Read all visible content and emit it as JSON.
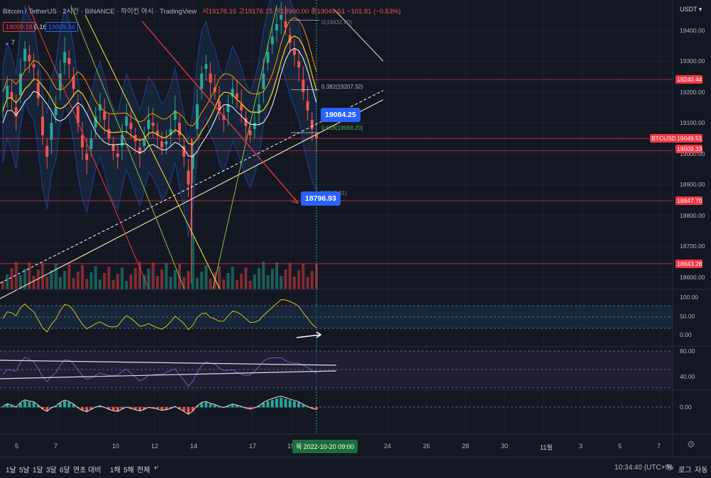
{
  "header": {
    "symbol": "Bitcoin / TetherUS · 2시간 · BINANCE · 하이킨 아시 · TradingView",
    "ohlc": "시19176.15 고19176.15 저18900.00 종19049.51 −101.81 (−0.53%)",
    "ind_values": [
      "19009.18",
      "0.16",
      "19009.34"
    ],
    "collapse": "7"
  },
  "price_axis": {
    "currency": "USDT",
    "ticks": [
      "19400.00",
      "19300.00",
      "19200.00",
      "19100.00",
      "19000.00",
      "18900.00",
      "18800.00",
      "18700.00",
      "18600.00"
    ],
    "rsi_ticks": [
      "100.00",
      "50.00",
      "0.00"
    ],
    "osc_ticks": [
      "80.00",
      "40.00"
    ],
    "macd_ticks": [
      "0.00"
    ]
  },
  "price_tags": [
    {
      "label": "19240.44",
      "color": "#f23645"
    },
    {
      "label": "BTCUSDT",
      "color": "#f23645"
    },
    {
      "label": "19049.51",
      "color": "#f23645"
    },
    {
      "label": "19009.33",
      "color": "#f23645"
    },
    {
      "label": "18847.70",
      "color": "#f23645"
    },
    {
      "label": "18643.28",
      "color": "#f23645"
    }
  ],
  "fib": {
    "top": "0(19432.80)",
    "mid": "0.382(19207.32)",
    "low": "0.618(19068.20)",
    "bottom": "(18848.01)"
  },
  "callouts": {
    "upper": "19084.25",
    "lower": "18796.93"
  },
  "time_axis": {
    "labels": [
      "5",
      "7",
      "10",
      "12",
      "14",
      "17",
      "19",
      "24",
      "26",
      "28",
      "30",
      "11월",
      "3",
      "5",
      "7"
    ],
    "current": "목 2022-10-20   09:00"
  },
  "bottom": {
    "timeframes": [
      "1날",
      "5날",
      "1달",
      "3달",
      "6달",
      "연초 대비",
      "1해",
      "5해",
      "전체"
    ],
    "clock": "10:34:40 (UTC+9)",
    "percent": "%",
    "log": "로그",
    "auto": "자동"
  },
  "chart_data": {
    "type": "candlestick",
    "title": "Bitcoin / TetherUS · 2시간 · BINANCE",
    "x_range": [
      "2022-10-04",
      "2022-11-08"
    ],
    "ylim": [
      18560,
      19480
    ],
    "last_close": 19049.51,
    "horizontal_levels": [
      19240.44,
      19049.51,
      19009.33,
      18847.7,
      18643.28
    ],
    "fib_levels": [
      {
        "ratio": 0,
        "price": 19432.8
      },
      {
        "ratio": 0.382,
        "price": 19207.32
      },
      {
        "ratio": 0.618,
        "price": 19068.2
      }
    ],
    "targets": [
      19084.25,
      18796.93
    ],
    "close_series": [
      19140,
      19220,
      19180,
      19120,
      19260,
      19340,
      19300,
      19280,
      19180,
      19060,
      18990,
      19100,
      19150,
      19260,
      19330,
      19290,
      19210,
      19100,
      19020,
      18980,
      19050,
      19120,
      19160,
      19110,
      19050,
      19010,
      18990,
      19060,
      19120,
      19080,
      19040,
      19000,
      19050,
      19110,
      19090,
      19060,
      19020,
      19040,
      19080,
      19140,
      19060,
      18990,
      18900,
      19000,
      19160,
      19260,
      19290,
      19230,
      19200,
      19140,
      19110,
      19160,
      19210,
      19180,
      19140,
      19090,
      19060,
      19100,
      19160,
      19260,
      19330,
      19380,
      19420,
      19450,
      19410,
      19360,
      19320,
      19280,
      19200,
      19140,
      19080,
      19050
    ]
  }
}
